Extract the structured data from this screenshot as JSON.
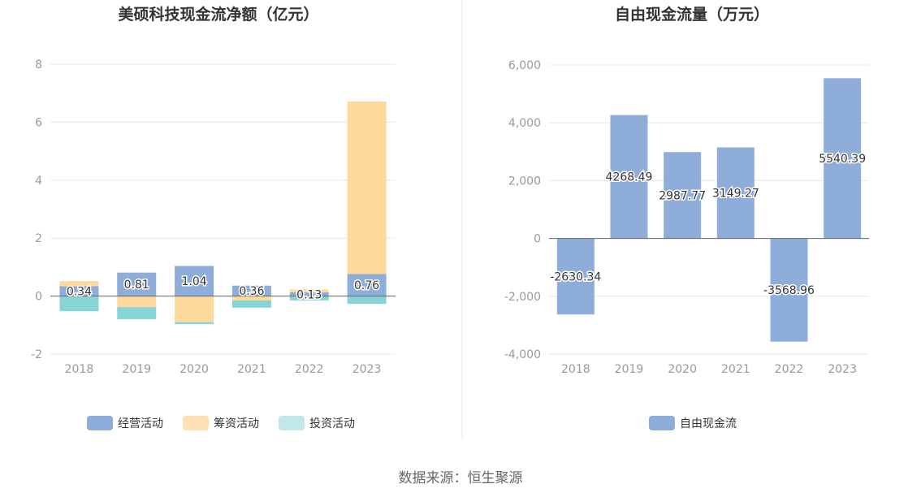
{
  "footer": {
    "source": "数据来源：恒生聚源"
  },
  "chart_data": [
    {
      "type": "bar",
      "stacked": true,
      "title": "美硕科技现金流净额（亿元）",
      "categories": [
        "2018",
        "2019",
        "2020",
        "2021",
        "2022",
        "2023"
      ],
      "series": [
        {
          "name": "经营活动",
          "color": "#8eaddb",
          "values": [
            0.34,
            0.81,
            1.04,
            0.36,
            0.13,
            0.76
          ]
        },
        {
          "name": "筹资活动",
          "color": "#fdd99b",
          "values": [
            0.18,
            -0.38,
            -0.9,
            -0.15,
            0.1,
            5.95
          ]
        },
        {
          "name": "投资活动",
          "color": "#86d4d6",
          "values": [
            -0.52,
            -0.42,
            -0.07,
            -0.25,
            -0.15,
            -0.27
          ]
        }
      ],
      "data_labels": [
        "0.34",
        "0.81",
        "1.04",
        "0.36",
        "0.13",
        "0.76"
      ],
      "ylim": [
        -2,
        8
      ],
      "yticks": [
        "-2",
        "0",
        "2",
        "4",
        "6",
        "8"
      ],
      "legend": [
        {
          "name": "经营活动",
          "color": "#8eaddb"
        },
        {
          "name": "筹资活动",
          "color": "#fde1b4"
        },
        {
          "name": "投资活动",
          "color": "#c0e8ea"
        }
      ],
      "legend_position": "bottom",
      "grid": true
    },
    {
      "type": "bar",
      "title": "自由现金流量（万元）",
      "categories": [
        "2018",
        "2019",
        "2020",
        "2021",
        "2022",
        "2023"
      ],
      "series": [
        {
          "name": "自由现金流",
          "color": "#8eaddb",
          "values": [
            -2630.34,
            4268.49,
            2987.77,
            3149.27,
            -3568.96,
            5540.39
          ]
        }
      ],
      "data_labels": [
        "-2630.34",
        "4268.49",
        "2987.77",
        "3149.27",
        "-3568.96",
        "5540.39"
      ],
      "ylim": [
        -4000,
        6000
      ],
      "yticks": [
        "-4,000",
        "-2,000",
        "0",
        "2,000",
        "4,000",
        "6,000"
      ],
      "legend": [
        {
          "name": "自由现金流",
          "color": "#8eaddb"
        }
      ],
      "legend_position": "bottom",
      "grid": true
    }
  ]
}
